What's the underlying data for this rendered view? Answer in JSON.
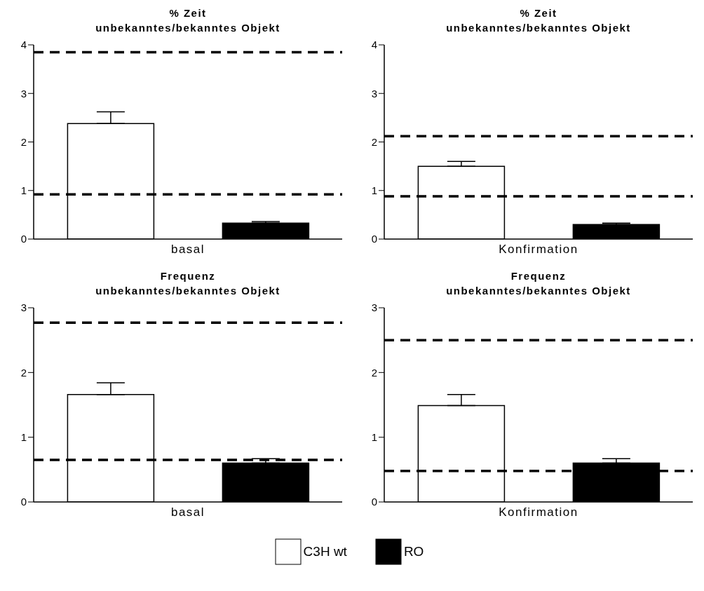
{
  "chart_data": [
    {
      "type": "bar",
      "title": "% Zeit",
      "subtitle": "unbekanntes/bekanntes Objekt",
      "categories": [
        "basal"
      ],
      "series": [
        {
          "color": "#ffffff",
          "values": [
            2.38
          ],
          "errors": [
            0.24
          ]
        },
        {
          "color": "#000000",
          "values": [
            0.33
          ],
          "errors": [
            0.03
          ]
        }
      ],
      "ylim": [
        0,
        4
      ],
      "yticks": [
        0,
        1,
        2,
        3,
        4
      ],
      "grid": false,
      "legend": false,
      "ref_lines": [
        {
          "axis": "y",
          "value": 3.85,
          "color": "#000000",
          "line_style": "dashed"
        },
        {
          "axis": "y",
          "value": 0.92,
          "color": "#000000",
          "line_style": "dashed"
        }
      ]
    },
    {
      "type": "bar",
      "title": "% Zeit",
      "subtitle": "unbekanntes/bekanntes Objekt",
      "categories": [
        "Konfirmation"
      ],
      "series": [
        {
          "color": "#ffffff",
          "values": [
            1.5
          ],
          "errors": [
            0.1
          ]
        },
        {
          "color": "#000000",
          "values": [
            0.3
          ],
          "errors": [
            0.03
          ]
        }
      ],
      "ylim": [
        0,
        4
      ],
      "yticks": [
        0,
        1,
        2,
        3,
        4
      ],
      "grid": false,
      "legend": false,
      "ref_lines": [
        {
          "axis": "y",
          "value": 2.12,
          "color": "#000000",
          "line_style": "dashed"
        },
        {
          "axis": "y",
          "value": 0.88,
          "color": "#000000",
          "line_style": "dashed"
        }
      ]
    },
    {
      "type": "bar",
      "title": "Frequenz",
      "subtitle": "unbekanntes/bekanntes Objekt",
      "categories": [
        "basal"
      ],
      "series": [
        {
          "color": "#ffffff",
          "values": [
            1.66
          ],
          "errors": [
            0.18
          ]
        },
        {
          "color": "#000000",
          "values": [
            0.6
          ],
          "errors": [
            0.07
          ]
        }
      ],
      "ylim": [
        0,
        3
      ],
      "yticks": [
        0,
        1,
        2,
        3
      ],
      "grid": false,
      "legend": false,
      "ref_lines": [
        {
          "axis": "y",
          "value": 2.77,
          "color": "#000000",
          "line_style": "dashed"
        },
        {
          "axis": "y",
          "value": 0.65,
          "color": "#000000",
          "line_style": "dashed"
        }
      ]
    },
    {
      "type": "bar",
      "title": "Frequenz",
      "subtitle": "unbekanntes/bekanntes Objekt",
      "categories": [
        "Konfirmation"
      ],
      "series": [
        {
          "name": "C3H wt",
          "color": "#ffffff",
          "values": [
            1.49
          ],
          "errors": [
            0.17
          ]
        },
        {
          "name": "RO",
          "color": "#000000",
          "values": [
            0.6
          ],
          "errors": [
            0.07
          ]
        }
      ],
      "ylim": [
        0,
        3
      ],
      "yticks": [
        0,
        1,
        2,
        3
      ],
      "grid": false,
      "legend": "bottom",
      "ref_lines": [
        {
          "axis": "y",
          "value": 2.5,
          "color": "#000000",
          "line_style": "dashed"
        },
        {
          "axis": "y",
          "value": 0.48,
          "color": "#000000",
          "line_style": "dashed"
        }
      ]
    }
  ]
}
